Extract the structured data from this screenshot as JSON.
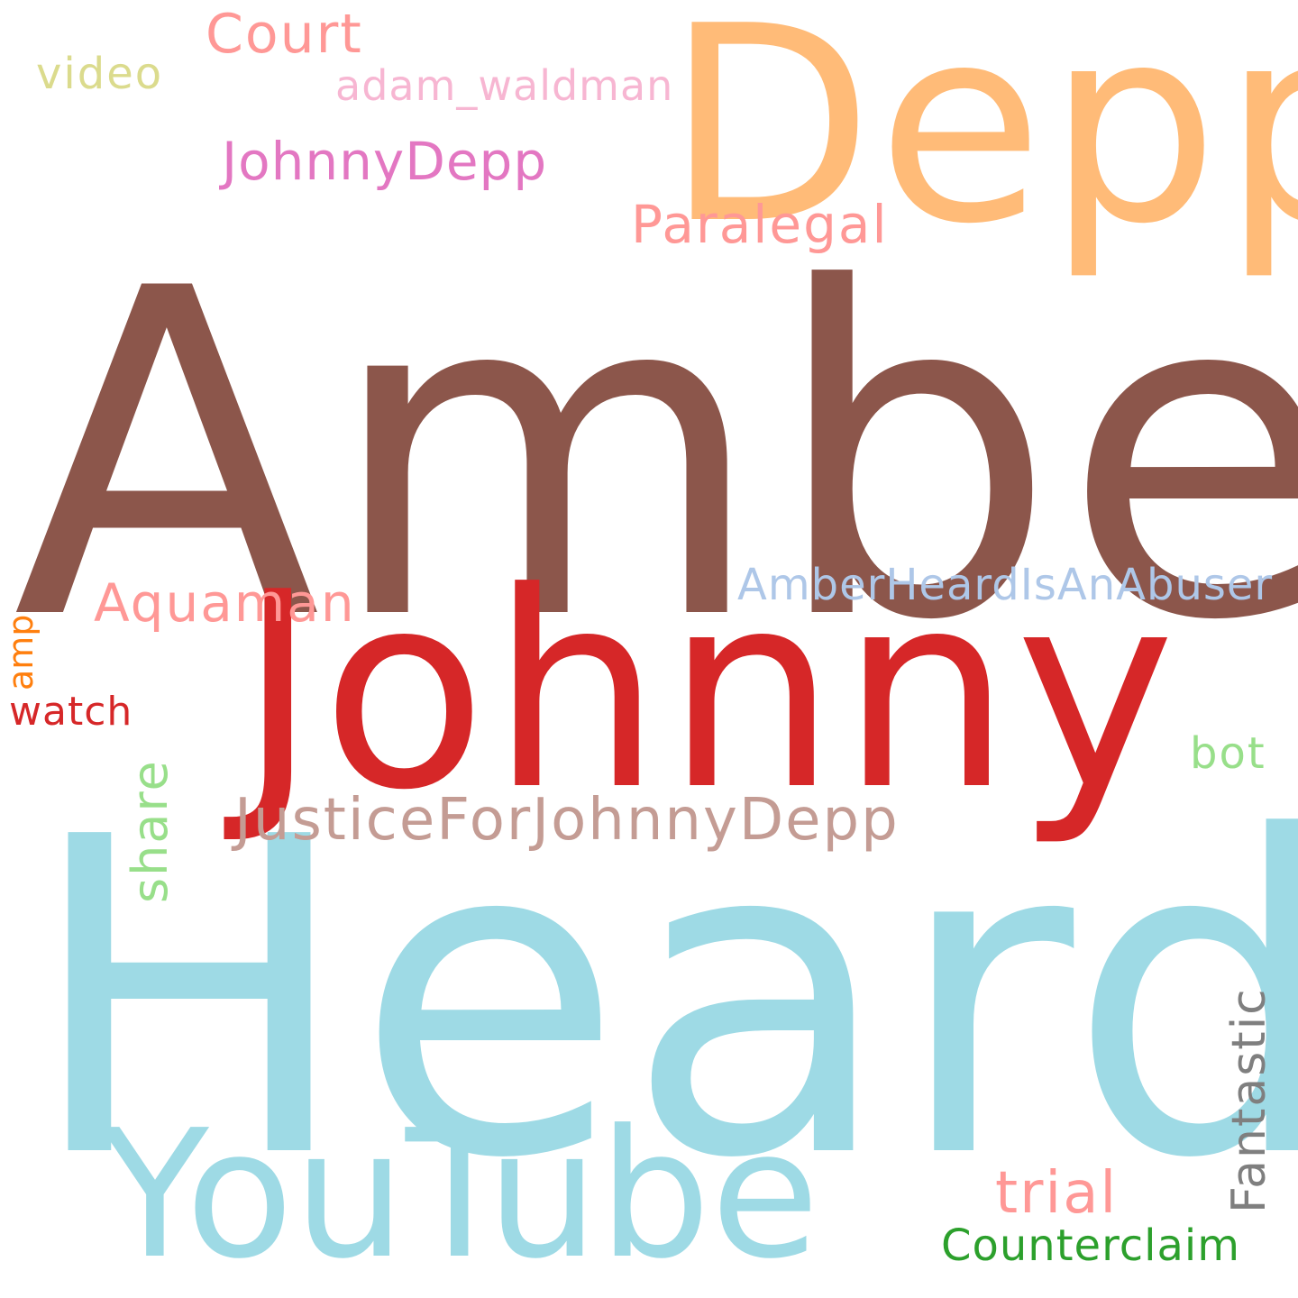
{
  "words": [
    {
      "text": "Amber",
      "color": "#8c564b"
    },
    {
      "text": "Heard",
      "color": "#9edae5"
    },
    {
      "text": "Johnny",
      "color": "#d62728"
    },
    {
      "text": "Depp",
      "color": "#ffbb78"
    },
    {
      "text": "YouTube",
      "color": "#9edae5"
    },
    {
      "text": "JusticeForJohnnyDepp",
      "color": "#c49c94"
    },
    {
      "text": "Court",
      "color": "#ff9896"
    },
    {
      "text": "Paralegal",
      "color": "#ff9896"
    },
    {
      "text": "JohnnyDepp",
      "color": "#e377c2"
    },
    {
      "text": "Aquaman",
      "color": "#ff9896"
    },
    {
      "text": "AmberHeardIsAnAbuser",
      "color": "#aec7e8"
    },
    {
      "text": "video",
      "color": "#dbdb8d"
    },
    {
      "text": "adam_waldman",
      "color": "#f7b6d2"
    },
    {
      "text": "bot",
      "color": "#98df8a"
    },
    {
      "text": "watch",
      "color": "#d62728"
    },
    {
      "text": "trial",
      "color": "#ff9896"
    },
    {
      "text": "Counterclaim",
      "color": "#2ca02c"
    },
    {
      "text": "share",
      "color": "#98df8a"
    },
    {
      "text": "Fantastic",
      "color": "#7f7f7f"
    },
    {
      "text": "amp",
      "color": "#ff7f0e"
    }
  ]
}
